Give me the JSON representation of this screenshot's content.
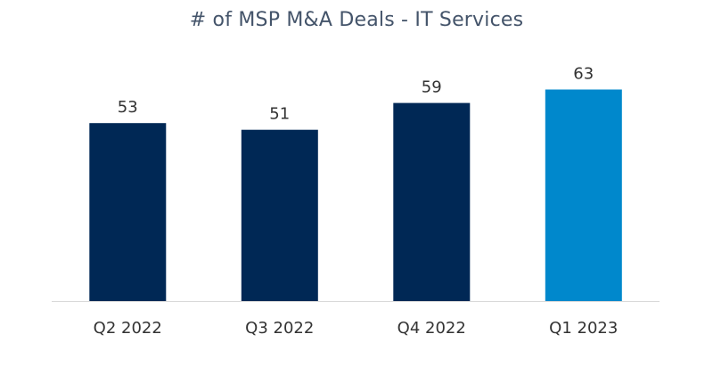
{
  "chart_data": {
    "type": "bar",
    "title": "# of MSP M&A Deals - IT Services",
    "categories": [
      "Q2 2022",
      "Q3 2022",
      "Q4 2022",
      "Q1 2023"
    ],
    "values": [
      53,
      51,
      59,
      63
    ],
    "ylim": [
      0,
      68
    ],
    "data_labels": true,
    "legend": "none",
    "grid": false,
    "colors": [
      "#002855",
      "#002855",
      "#002855",
      "#0088cc"
    ],
    "axis_color": "#d9d9d9"
  }
}
